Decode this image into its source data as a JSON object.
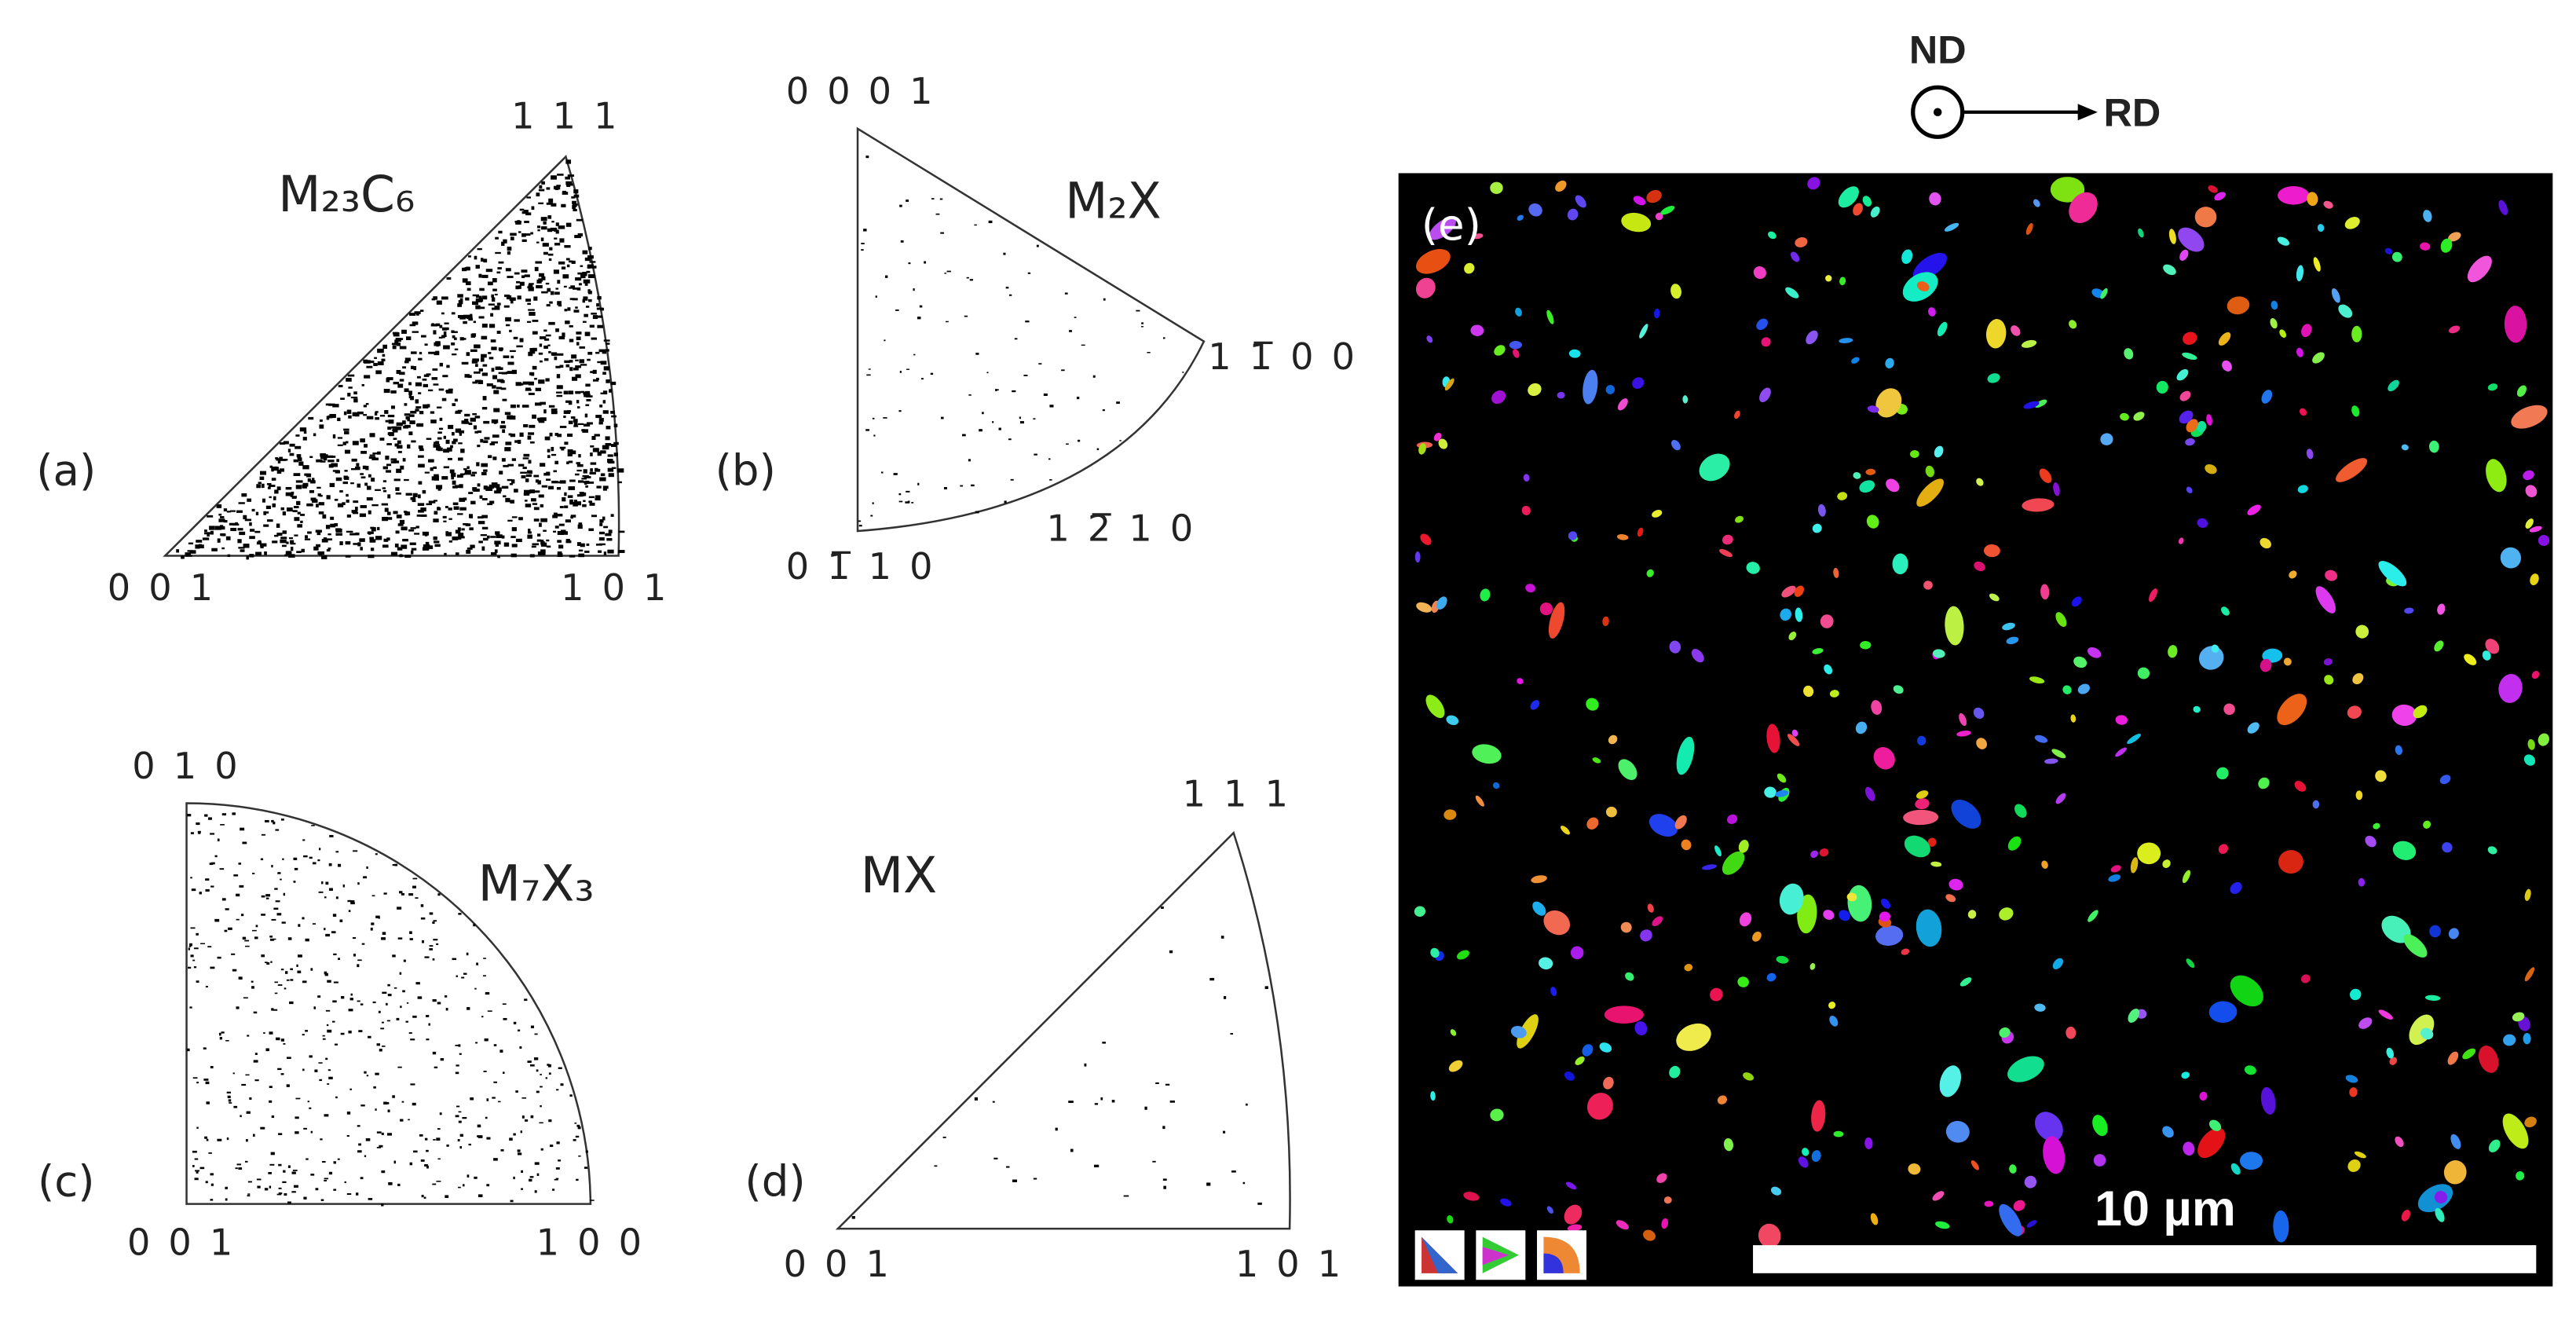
{
  "panels": [
    {
      "label": "(a)",
      "phase": "M₂₃C₆",
      "corners": [
        "1 1 1",
        "0 0 1",
        "1 0 1"
      ]
    },
    {
      "label": "(b)",
      "phase": "M₂X",
      "corners": [
        "0 0 0 1",
        "1 1̅ 0 0",
        "1 2̅ 1 0",
        "0 1̅ 1 0"
      ]
    },
    {
      "label": "(c)",
      "phase": "M₇X₃",
      "corners": [
        "0 1 0",
        "0 0 1",
        "1 0 0"
      ]
    },
    {
      "label": "(d)",
      "phase": "MX",
      "corners": [
        "1 1 1",
        "0 0 1",
        "1 0 1"
      ]
    }
  ],
  "map": {
    "label": "(e)",
    "scale_bar": "10 µm",
    "normal": "ND",
    "rolling": "RD"
  }
}
